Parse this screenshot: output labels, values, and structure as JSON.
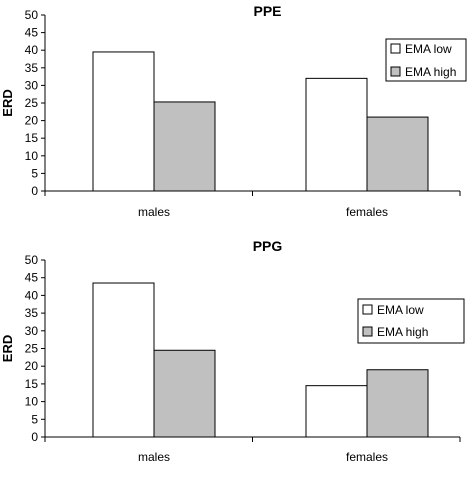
{
  "chart_data": [
    {
      "type": "bar",
      "title": "PPE",
      "ylabel": "ERD",
      "xlabel": "",
      "ylim": [
        0,
        50
      ],
      "yticks": [
        0,
        5,
        10,
        15,
        20,
        25,
        30,
        35,
        40,
        45,
        50
      ],
      "categories": [
        "males",
        "females"
      ],
      "series": [
        {
          "name": "EMA low",
          "values": [
            39.5,
            32
          ],
          "color": "#ffffff"
        },
        {
          "name": "EMA high",
          "values": [
            25.3,
            21
          ],
          "color": "#c0c0c0"
        }
      ],
      "legend": "top-right",
      "grid": false
    },
    {
      "type": "bar",
      "title": "PPG",
      "ylabel": "ERD",
      "xlabel": "",
      "ylim": [
        0,
        50
      ],
      "yticks": [
        0,
        5,
        10,
        15,
        20,
        25,
        30,
        35,
        40,
        45,
        50
      ],
      "categories": [
        "males",
        "females"
      ],
      "series": [
        {
          "name": "EMA low",
          "values": [
            43.5,
            14.5
          ],
          "color": "#ffffff"
        },
        {
          "name": "EMA high",
          "values": [
            24.5,
            19
          ],
          "color": "#c0c0c0"
        }
      ],
      "legend": "right",
      "grid": false
    }
  ]
}
